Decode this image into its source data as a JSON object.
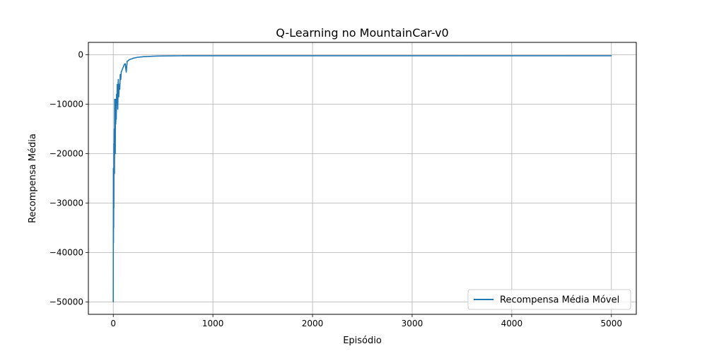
{
  "chart_data": {
    "type": "line",
    "title": "Q-Learning no MountainCar-v0",
    "xlabel": "Episódio",
    "ylabel": "Recompensa Média",
    "xlim": [
      -250,
      5250
    ],
    "ylim": [
      -52500,
      2500
    ],
    "x_ticks": [
      0,
      1000,
      2000,
      3000,
      4000,
      5000
    ],
    "x_tick_labels": [
      "0",
      "1000",
      "2000",
      "3000",
      "4000",
      "5000"
    ],
    "y_ticks": [
      0,
      -10000,
      -20000,
      -30000,
      -40000,
      -50000
    ],
    "y_tick_labels": [
      "0",
      "−10000",
      "−20000",
      "−30000",
      "−40000",
      "−50000"
    ],
    "grid": true,
    "legend_position": "lower-right",
    "series": [
      {
        "name": "Recompensa Média Móvel",
        "color": "#1f77b4",
        "x": [
          0,
          1,
          2,
          3,
          4,
          5,
          6,
          7,
          8,
          10,
          12,
          14,
          16,
          18,
          20,
          22,
          25,
          28,
          30,
          33,
          36,
          40,
          45,
          50,
          55,
          60,
          65,
          70,
          75,
          80,
          90,
          100,
          110,
          120,
          130,
          140,
          150,
          160,
          175,
          190,
          200,
          225,
          250,
          275,
          300,
          350,
          400,
          450,
          500,
          600,
          700,
          800,
          1000,
          1500,
          2000,
          2500,
          3000,
          3500,
          4000,
          4500,
          5000
        ],
        "values": [
          -50000,
          -23000,
          -38000,
          -30000,
          -35000,
          -26000,
          -31000,
          -18000,
          -22000,
          -15000,
          -24000,
          -9000,
          -16000,
          -12000,
          -20000,
          -9000,
          -14000,
          -11000,
          -13000,
          -8000,
          -10000,
          -6000,
          -11000,
          -5000,
          -8500,
          -6000,
          -7000,
          -4000,
          -5000,
          -3500,
          -3000,
          -2500,
          -2000,
          -1800,
          -3500,
          -1300,
          -1200,
          -1000,
          -900,
          -800,
          -700,
          -600,
          -500,
          -450,
          -400,
          -350,
          -300,
          -260,
          -240,
          -220,
          -210,
          -205,
          -200,
          -200,
          -200,
          -200,
          -200,
          -200,
          -200,
          -200,
          -200
        ]
      }
    ]
  }
}
